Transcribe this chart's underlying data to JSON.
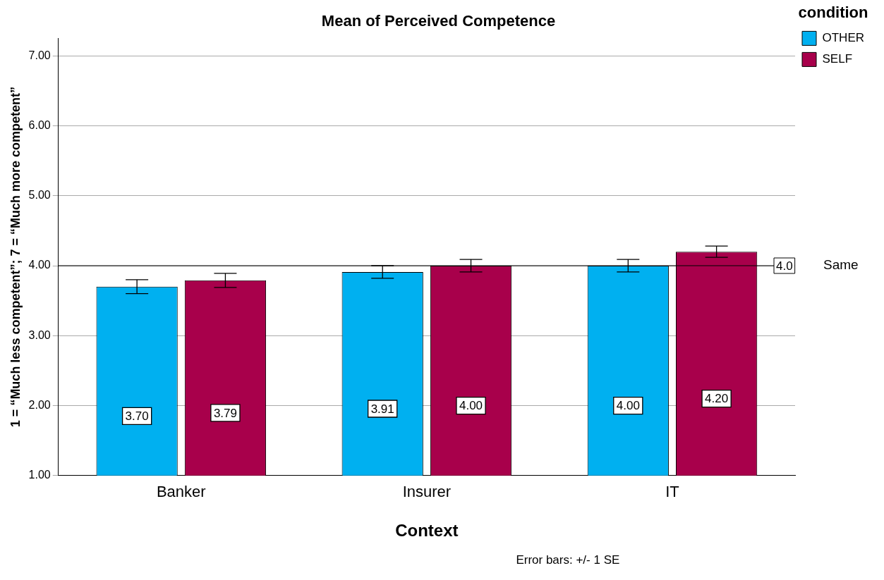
{
  "chart_data": {
    "type": "bar",
    "title": "Mean of Perceived Competence",
    "xlabel": "Context",
    "ylabel": "1 = “Much less competent”; 7 = “Much more competent”",
    "legend_title": "condition",
    "categories": [
      "Banker",
      "Insurer",
      "IT"
    ],
    "series": [
      {
        "name": "OTHER",
        "color": "#00b0f0",
        "values": [
          3.7,
          3.91,
          4.0
        ],
        "errors": [
          0.1,
          0.09,
          0.09
        ],
        "value_labels": [
          "3.70",
          "3.91",
          "4.00"
        ]
      },
      {
        "name": "SELF",
        "color": "#a8004b",
        "values": [
          3.79,
          4.0,
          4.2
        ],
        "errors": [
          0.1,
          0.09,
          0.08
        ],
        "value_labels": [
          "3.79",
          "4.00",
          "4.20"
        ]
      }
    ],
    "ylim": [
      1,
      7.25
    ],
    "yticks": [
      {
        "value": 1,
        "label": "1.00"
      },
      {
        "value": 2,
        "label": "2.00"
      },
      {
        "value": 3,
        "label": "3.00"
      },
      {
        "value": 4,
        "label": "4.00"
      },
      {
        "value": 5,
        "label": "5.00"
      },
      {
        "value": 6,
        "label": "6.00"
      },
      {
        "value": 7,
        "label": "7.00"
      }
    ],
    "grid": "y",
    "legend": "top right",
    "ref_lines": [
      {
        "axis": "y",
        "value": 4,
        "label": "Same",
        "color": "#000000"
      }
    ],
    "annotations": [
      {
        "text": "4.0",
        "y": 4
      },
      "Error bars: +/- 1 SE"
    ]
  }
}
